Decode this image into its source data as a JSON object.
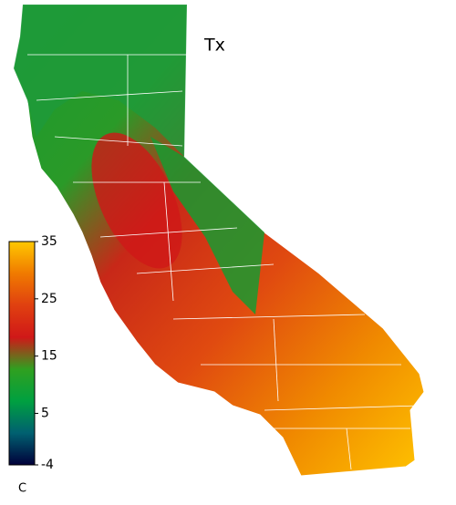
{
  "title": "Tx",
  "colorbar": {
    "lim": [
      -4,
      35
    ],
    "ticks": [
      35,
      25,
      15,
      5,
      -4
    ],
    "unit": "C",
    "colors": [
      "#00003a",
      "#006070",
      "#00a040",
      "#30a020",
      "#d01818",
      "#e04010",
      "#f07a00",
      "#ffc800"
    ]
  }
}
